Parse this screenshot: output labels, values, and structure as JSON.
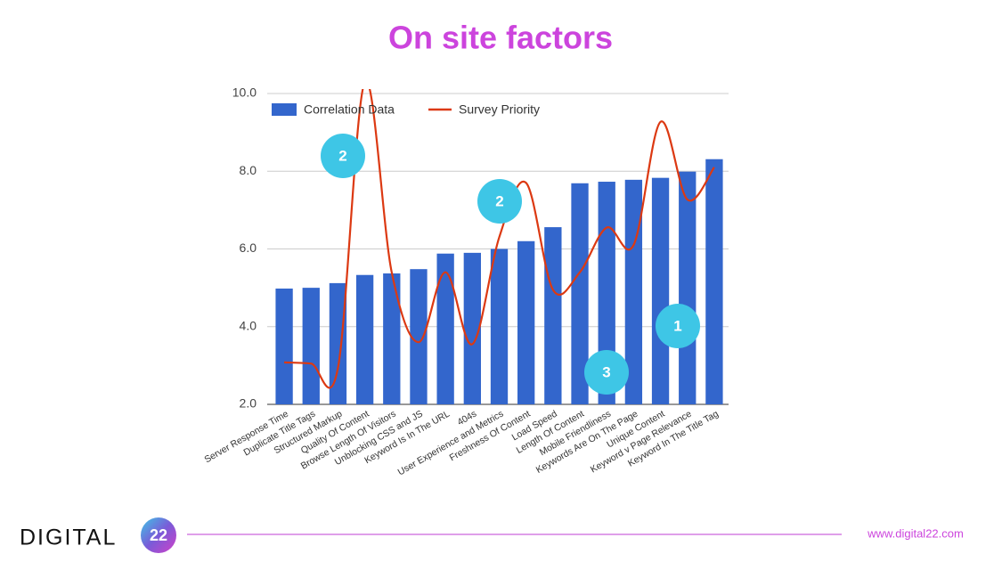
{
  "chart_data": {
    "type": "bar_line",
    "title": "On site factors",
    "categories": [
      "Server Response Time",
      "Duplicate Title Tags",
      "Structured Markup",
      "Quality Of Content",
      "Browse Length Of Visitors",
      "Unblocking CSS and JS",
      "Keyword Is In The URL",
      "404s",
      "User Experience and Metrics",
      "Freshness Of Content",
      "Load Speed",
      "Length Of Content",
      "Mobile Friendliness",
      "Keywords Are On The Page",
      "Unique Content",
      "Keyword v Page Relevance",
      "Keyword In The Title Tag"
    ],
    "series": [
      {
        "name": "Correlation Data",
        "type": "bar",
        "color": "#3366cc",
        "values": [
          4.98,
          5.0,
          5.12,
          5.33,
          5.37,
          5.48,
          5.88,
          5.9,
          6.0,
          6.2,
          6.56,
          7.69,
          7.73,
          7.78,
          7.83,
          7.99,
          8.31
        ]
      },
      {
        "name": "Survey Priority",
        "type": "line",
        "color": "#dc3912",
        "values": [
          3.08,
          3.05,
          2.94,
          10.3,
          5.4,
          3.6,
          5.4,
          3.55,
          6.3,
          7.7,
          4.95,
          5.4,
          6.55,
          6.1,
          9.27,
          7.27,
          8.1
        ]
      }
    ],
    "ylim": [
      2,
      10
    ],
    "yticks": [
      {
        "value": 2,
        "label": "2.0"
      },
      {
        "value": 4,
        "label": "4.0"
      },
      {
        "value": 6,
        "label": "6.0"
      },
      {
        "value": 8,
        "label": "8.0"
      },
      {
        "value": 10,
        "label": "10.0"
      }
    ],
    "grid": true,
    "legend": "top-left",
    "annotations": [
      "2",
      "2",
      "3",
      "1"
    ],
    "annotation_color": "#3ec6e6"
  },
  "footer": {
    "logo": "DIGITAL",
    "badge": "22",
    "url": "www.digital22.com"
  }
}
